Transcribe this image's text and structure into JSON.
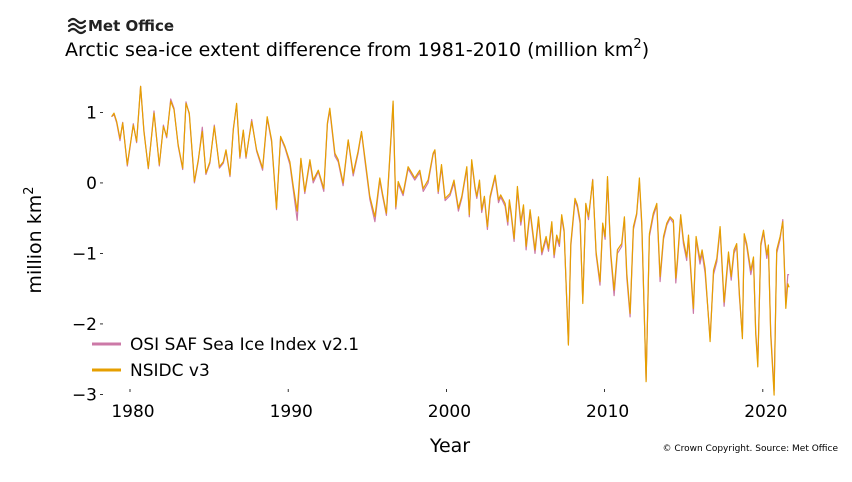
{
  "logo": {
    "text": "Met Office"
  },
  "chart_data": {
    "type": "line",
    "title": "Arctic sea-ice extent difference from 1981-2010 (million km",
    "title_superscript": "2",
    "title_suffix": ")",
    "xlabel": "Year",
    "ylabel": "million km",
    "ylabel_superscript": "2",
    "xlim": [
      1976.84,
      2022.35
    ],
    "ylim": [
      -3.15,
      1.46
    ],
    "xticks": [
      1980,
      1990,
      2000,
      2010,
      2020
    ],
    "yticks": [
      1,
      0,
      -1,
      -2,
      -3
    ],
    "ytick_labels": [
      "1",
      "0",
      "−1",
      "−2",
      "−3"
    ],
    "xtick_labels": [
      "1980",
      "1990",
      "2000",
      "2010",
      "2020"
    ],
    "grid": false,
    "legend_position": "bottom-left",
    "x": [
      1978.84,
      1978.99,
      1979.16,
      1979.37,
      1979.54,
      1979.83,
      1980.0,
      1980.21,
      1980.42,
      1980.67,
      1980.88,
      1981.16,
      1981.52,
      1981.85,
      1982.11,
      1982.32,
      1982.57,
      1982.78,
      1983.05,
      1983.33,
      1983.54,
      1983.75,
      1984.07,
      1984.32,
      1984.57,
      1984.8,
      1985.05,
      1985.33,
      1985.65,
      1985.9,
      1986.07,
      1986.32,
      1986.53,
      1986.74,
      1986.95,
      1987.16,
      1987.33,
      1987.69,
      1988.0,
      1988.38,
      1988.67,
      1988.95,
      1989.26,
      1989.52,
      1989.79,
      1990.11,
      1990.32,
      1990.57,
      1990.8,
      1991.05,
      1991.37,
      1991.58,
      1991.9,
      1992.25,
      1992.48,
      1992.63,
      1992.95,
      1993.16,
      1993.47,
      1993.79,
      1994.11,
      1994.42,
      1994.63,
      1994.84,
      1995.16,
      1995.48,
      1995.79,
      1995.96,
      1996.21,
      1996.63,
      1996.8,
      1996.95,
      1997.26,
      1997.58,
      1998.0,
      1998.32,
      1998.53,
      1998.84,
      1999.16,
      1999.27,
      1999.48,
      1999.69,
      1999.92,
      2000.23,
      2000.48,
      2000.76,
      2000.97,
      2001.29,
      2001.45,
      2001.6,
      2001.81,
      2001.92,
      2002.09,
      2002.23,
      2002.4,
      2002.59,
      2002.76,
      2003.08,
      2003.29,
      2003.43,
      2003.71,
      2003.88,
      2003.98,
      2004.09,
      2004.28,
      2004.49,
      2004.7,
      2004.87,
      2005.04,
      2005.29,
      2005.6,
      2005.82,
      2006.03,
      2006.3,
      2006.45,
      2006.66,
      2006.81,
      2006.97,
      2007.14,
      2007.29,
      2007.44,
      2007.71,
      2007.86,
      2008.13,
      2008.28,
      2008.45,
      2008.62,
      2008.81,
      2008.98,
      2009.25,
      2009.46,
      2009.71,
      2009.88,
      2010.03,
      2010.18,
      2010.39,
      2010.6,
      2010.81,
      2011.08,
      2011.25,
      2011.4,
      2011.61,
      2011.82,
      2012.03,
      2012.2,
      2012.35,
      2012.62,
      2012.83,
      2013.08,
      2013.3,
      2013.51,
      2013.72,
      2013.93,
      2014.14,
      2014.35,
      2014.5,
      2014.6,
      2014.81,
      2014.98,
      2015.19,
      2015.3,
      2015.61,
      2015.78,
      2016.03,
      2016.16,
      2016.35,
      2016.67,
      2016.88,
      2017.09,
      2017.3,
      2017.55,
      2017.83,
      2018.0,
      2018.18,
      2018.35,
      2018.52,
      2018.71,
      2018.82,
      2018.98,
      2019.24,
      2019.41,
      2019.55,
      2019.68,
      2019.87,
      2020.04,
      2020.25,
      2020.35,
      2020.5,
      2020.71,
      2020.88,
      2021.09,
      2021.26,
      2021.45,
      2021.58,
      2021.66
    ],
    "series": [
      {
        "name": "OSI SAF Sea Ice Index v2.1",
        "color": "#CC79A7",
        "values": [
          0.94,
          0.97,
          0.85,
          0.6,
          0.86,
          0.24,
          0.5,
          0.84,
          0.57,
          1.37,
          0.75,
          0.2,
          1.02,
          0.24,
          0.82,
          0.64,
          1.19,
          1.06,
          0.52,
          0.19,
          1.15,
          0.97,
          0.0,
          0.31,
          0.79,
          0.12,
          0.28,
          0.82,
          0.21,
          0.28,
          0.45,
          0.09,
          0.77,
          1.11,
          0.35,
          0.74,
          0.35,
          0.9,
          0.45,
          0.18,
          0.92,
          0.58,
          -0.38,
          0.64,
          0.5,
          0.26,
          -0.1,
          -0.53,
          0.33,
          -0.15,
          0.3,
          0.0,
          0.16,
          -0.12,
          0.83,
          1.03,
          0.38,
          0.3,
          -0.04,
          0.6,
          0.1,
          0.42,
          0.72,
          0.33,
          -0.23,
          -0.55,
          0.04,
          -0.18,
          -0.46,
          1.12,
          -0.37,
          -0.01,
          -0.18,
          0.2,
          0.04,
          0.15,
          -0.12,
          0.0,
          0.4,
          0.45,
          -0.15,
          0.22,
          -0.25,
          -0.18,
          0.0,
          -0.4,
          -0.22,
          0.2,
          -0.48,
          0.3,
          -0.08,
          -0.22,
          0.0,
          -0.42,
          -0.22,
          -0.66,
          -0.22,
          0.08,
          -0.28,
          -0.2,
          -0.33,
          -0.6,
          -0.27,
          -0.45,
          -0.83,
          -0.1,
          -0.6,
          -0.35,
          -0.95,
          -0.42,
          -1.0,
          -0.52,
          -1.02,
          -0.8,
          -0.97,
          -0.6,
          -1.06,
          -0.78,
          -0.9,
          -0.5,
          -0.7,
          -2.28,
          -0.9,
          -0.25,
          -0.35,
          -0.58,
          -1.68,
          -0.3,
          -0.52,
          0.05,
          -1.02,
          -1.45,
          -0.6,
          -0.8,
          0.05,
          -1.05,
          -1.6,
          -1.0,
          -0.9,
          -0.5,
          -1.35,
          -1.9,
          -0.66,
          -0.45,
          0.02,
          -0.62,
          -2.8,
          -0.76,
          -0.47,
          -0.32,
          -1.4,
          -0.8,
          -0.6,
          -0.5,
          -0.57,
          -1.42,
          -1.15,
          -0.48,
          -0.86,
          -1.1,
          -0.78,
          -1.85,
          -0.8,
          -1.15,
          -1.0,
          -1.28,
          -2.2,
          -1.3,
          -1.12,
          -0.66,
          -1.75,
          -1.03,
          -1.38,
          -1.0,
          -0.9,
          -1.62,
          -2.18,
          -0.76,
          -0.9,
          -1.3,
          -1.1,
          -2.1,
          -2.55,
          -0.9,
          -0.7,
          -1.07,
          -0.92,
          -2.1,
          -2.95,
          -1.0,
          -0.8,
          -0.52,
          -1.72,
          -1.3,
          -1.3
        ]
      },
      {
        "name": "NSIDC v3",
        "color": "#E69F00",
        "values": [
          0.94,
          0.99,
          0.87,
          0.63,
          0.85,
          0.26,
          0.52,
          0.82,
          0.59,
          1.37,
          0.73,
          0.21,
          0.99,
          0.26,
          0.8,
          0.66,
          1.16,
          1.04,
          0.54,
          0.21,
          1.13,
          0.99,
          0.02,
          0.33,
          0.73,
          0.14,
          0.3,
          0.8,
          0.23,
          0.3,
          0.47,
          0.11,
          0.75,
          1.13,
          0.37,
          0.75,
          0.37,
          0.87,
          0.47,
          0.21,
          0.94,
          0.61,
          -0.36,
          0.66,
          0.52,
          0.3,
          -0.05,
          -0.4,
          0.35,
          -0.12,
          0.33,
          0.04,
          0.18,
          -0.08,
          0.85,
          1.06,
          0.42,
          0.33,
          0.0,
          0.61,
          0.14,
          0.45,
          0.73,
          0.37,
          -0.19,
          -0.48,
          0.07,
          -0.15,
          -0.43,
          1.16,
          -0.34,
          0.02,
          -0.15,
          0.23,
          0.07,
          0.18,
          -0.08,
          0.04,
          0.42,
          0.47,
          -0.12,
          0.26,
          -0.22,
          -0.15,
          0.04,
          -0.36,
          -0.19,
          0.23,
          -0.45,
          0.33,
          -0.05,
          -0.19,
          0.04,
          -0.38,
          -0.19,
          -0.62,
          -0.19,
          0.11,
          -0.24,
          -0.17,
          -0.29,
          -0.55,
          -0.24,
          -0.41,
          -0.79,
          -0.05,
          -0.55,
          -0.31,
          -0.9,
          -0.38,
          -0.95,
          -0.48,
          -0.98,
          -0.76,
          -0.93,
          -0.55,
          -1.02,
          -0.74,
          -0.86,
          -0.45,
          -0.67,
          -2.3,
          -0.86,
          -0.22,
          -0.31,
          -0.53,
          -1.71,
          -0.29,
          -0.48,
          0.04,
          -0.98,
          -1.4,
          -0.57,
          -0.76,
          0.09,
          -1.0,
          -1.52,
          -0.95,
          -0.86,
          -0.48,
          -1.28,
          -1.85,
          -0.62,
          -0.43,
          0.07,
          -0.57,
          -2.82,
          -0.72,
          -0.43,
          -0.29,
          -1.33,
          -0.76,
          -0.57,
          -0.48,
          -0.53,
          -1.35,
          -1.09,
          -0.45,
          -0.81,
          -1.05,
          -0.74,
          -1.78,
          -0.76,
          -1.09,
          -0.95,
          -1.21,
          -2.25,
          -1.24,
          -1.07,
          -0.62,
          -1.69,
          -0.98,
          -1.33,
          -0.95,
          -0.86,
          -1.57,
          -2.21,
          -0.72,
          -0.86,
          -1.24,
          -1.05,
          -2.14,
          -2.61,
          -0.86,
          -0.67,
          -1.02,
          -0.88,
          -2.16,
          -3.01,
          -0.95,
          -0.76,
          -0.55,
          -1.78,
          -1.43,
          -1.48
        ]
      }
    ],
    "annotation": "© Crown Copyright. Source: Met Office"
  }
}
